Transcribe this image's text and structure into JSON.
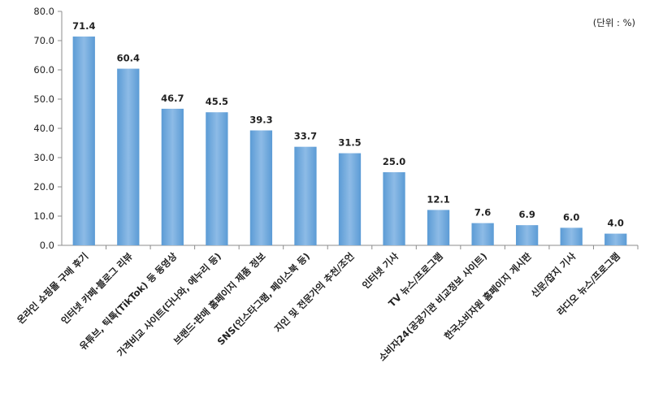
{
  "unit_label": "(단위 : %)",
  "chart_data": {
    "type": "bar",
    "categories": [
      "온라인 쇼핑몰 구매 후기",
      "인터넷 카페·블로그 리뷰",
      "유튜브, 틱톡(TikTok) 등 동영상",
      "가격비교 사이트(다나와, 에누리 등)",
      "브랜드·판매 홈페이지 제품 정보",
      "SNS(인스타그램, 페이스북 등)",
      "지인 및 전문가의 추천/조언",
      "인터넷 기사",
      "TV 뉴스/프로그램",
      "소비자24(공공기관 비교정보 사이트)",
      "한국소비자원 홈페이지 게시판",
      "신문/잡지 기사",
      "라디오 뉴스/프로그램"
    ],
    "values": [
      71.4,
      60.4,
      46.7,
      45.5,
      39.3,
      33.7,
      31.5,
      25.0,
      12.1,
      7.6,
      6.9,
      6.0,
      4.0
    ],
    "value_labels": [
      "71.4",
      "60.4",
      "46.7",
      "45.5",
      "39.3",
      "33.7",
      "31.5",
      "25.0",
      "12.1",
      "7.6",
      "6.9",
      "6.0",
      "4.0"
    ],
    "yticks": [
      "0.0",
      "10.0",
      "20.0",
      "30.0",
      "40.0",
      "50.0",
      "60.0",
      "70.0",
      "80.0"
    ],
    "ylim": [
      0,
      80
    ],
    "grid": false,
    "bar_color": "#5b9bd5",
    "bar_color_light": "#8dbbe6"
  }
}
